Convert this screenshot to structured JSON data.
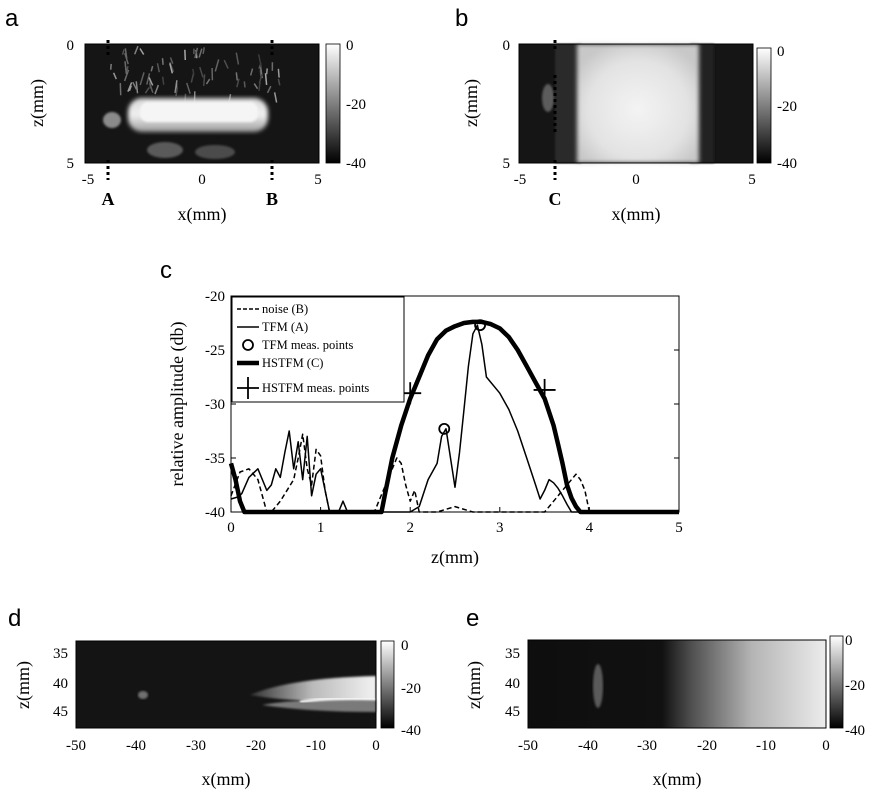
{
  "chart_data": [
    {
      "panel": "a",
      "type": "heatmap",
      "xlabel": "x(mm)",
      "ylabel": "z(mm)",
      "xticks": [
        "-5",
        "0",
        "5"
      ],
      "yticks": [
        "0",
        "5"
      ],
      "xlim": [
        -5,
        5
      ],
      "ylim": [
        0,
        5
      ],
      "colorbar": {
        "ticks": [
          "0",
          "-20",
          "-40"
        ],
        "range": [
          -40,
          0
        ]
      },
      "markers": [
        {
          "label": "A",
          "x": -4.2
        },
        {
          "label": "B",
          "x": 3.6
        }
      ]
    },
    {
      "panel": "b",
      "type": "heatmap",
      "xlabel": "x(mm)",
      "ylabel": "z(mm)",
      "xticks": [
        "-5",
        "0",
        "5"
      ],
      "yticks": [
        "0",
        "5"
      ],
      "xlim": [
        -5,
        5
      ],
      "ylim": [
        0,
        5
      ],
      "colorbar": {
        "ticks": [
          "0",
          "-20",
          "-40"
        ],
        "range": [
          -40,
          0
        ]
      },
      "markers": [
        {
          "label": "C",
          "x": -4.2
        }
      ]
    },
    {
      "panel": "c",
      "type": "line",
      "xlabel": "z(mm)",
      "ylabel": "relative amplitude (db)",
      "xlim": [
        0,
        5
      ],
      "ylim": [
        -40,
        -20
      ],
      "xticks": [
        "0",
        "1",
        "2",
        "3",
        "4",
        "5"
      ],
      "yticks": [
        "-20",
        "-25",
        "-30",
        "-35",
        "-40"
      ],
      "legend_position": "top-left",
      "series": [
        {
          "name": "noise (B)",
          "style": "dashed",
          "x": [
            0,
            0.1,
            0.2,
            0.3,
            0.4,
            0.45,
            0.55,
            0.7,
            0.75,
            0.8,
            0.85,
            0.9,
            0.95,
            1.0,
            1.05,
            1.1,
            1.2,
            1.6,
            1.65,
            1.75,
            1.85,
            1.9,
            1.95,
            2.0,
            2.05,
            2.1,
            2.3,
            2.5,
            2.7,
            3.5,
            3.6,
            3.7,
            3.8,
            3.85,
            3.9,
            3.95,
            4.0,
            4.05,
            4.1,
            5.0
          ],
          "y": [
            -38.5,
            -36.3,
            -36.0,
            -37.0,
            -40,
            -40,
            -39,
            -37,
            -35,
            -32.8,
            -36,
            -37.5,
            -34.2,
            -34.8,
            -38,
            -40,
            -40,
            -40,
            -39,
            -37,
            -35,
            -35.5,
            -37.5,
            -39,
            -38,
            -40,
            -40,
            -39.5,
            -40,
            -40,
            -39,
            -38,
            -37,
            -36.5,
            -37,
            -38,
            -40,
            -40,
            -40,
            -40
          ]
        },
        {
          "name": "TFM (A)",
          "style": "solid",
          "x": [
            0,
            0.08,
            0.12,
            0.2,
            0.3,
            0.4,
            0.45,
            0.5,
            0.55,
            0.6,
            0.65,
            0.7,
            0.75,
            0.8,
            0.85,
            0.9,
            0.95,
            1.0,
            1.05,
            1.1,
            1.2,
            1.25,
            1.3,
            1.6,
            1.8,
            1.9,
            2.0,
            2.1,
            2.2,
            2.3,
            2.35,
            2.4,
            2.45,
            2.5,
            2.55,
            2.6,
            2.65,
            2.7,
            2.75,
            2.8,
            2.85,
            3.0,
            3.1,
            3.2,
            3.3,
            3.4,
            3.45,
            3.5,
            3.55,
            3.6,
            3.65,
            3.7,
            3.75,
            3.8,
            3.9,
            5.0
          ],
          "y": [
            -38.8,
            -38.6,
            -38.3,
            -36.8,
            -36.0,
            -38.0,
            -37.5,
            -36.0,
            -36.8,
            -34.5,
            -32.5,
            -36.0,
            -33.5,
            -37.0,
            -33.0,
            -38.5,
            -36.5,
            -36.0,
            -38.0,
            -40,
            -40,
            -39,
            -40,
            -40,
            -40,
            -40,
            -40,
            -39.5,
            -37,
            -35.5,
            -33.0,
            -32.3,
            -35.0,
            -37.7,
            -34.5,
            -30.5,
            -26.5,
            -23.5,
            -22.7,
            -24.5,
            -27.5,
            -29.0,
            -30.5,
            -32.5,
            -35.0,
            -37.5,
            -38.8,
            -38.0,
            -37.0,
            -37.3,
            -37.8,
            -38.5,
            -39.3,
            -40,
            -40,
            -40
          ]
        },
        {
          "name": "HSTFM (C)",
          "style": "thick",
          "x": [
            0,
            0.05,
            0.1,
            0.15,
            0.2,
            1.68,
            1.72,
            1.8,
            1.9,
            2.0,
            2.1,
            2.2,
            2.3,
            2.4,
            2.5,
            2.6,
            2.7,
            2.8,
            2.9,
            3.0,
            3.1,
            3.2,
            3.3,
            3.4,
            3.5,
            3.6,
            3.65,
            3.7,
            3.75,
            3.8,
            3.85,
            3.9,
            5.0
          ],
          "y": [
            -35.5,
            -37,
            -39,
            -40,
            -40,
            -40,
            -38.3,
            -35.0,
            -32.0,
            -29.5,
            -27.5,
            -25.5,
            -24.0,
            -23.2,
            -22.8,
            -22.5,
            -22.4,
            -22.4,
            -22.6,
            -23.0,
            -23.8,
            -25.0,
            -26.5,
            -28.0,
            -29.5,
            -32.0,
            -33.7,
            -35.5,
            -37.5,
            -38.7,
            -39.5,
            -40,
            -40
          ]
        },
        {
          "name": "TFM meas. points",
          "style": "circle-markers",
          "x": [
            2.38,
            2.78
          ],
          "y": [
            -32.3,
            -22.7
          ]
        },
        {
          "name": "HSTFM meas. points",
          "style": "plus-markers",
          "x": [
            2.0,
            3.5
          ],
          "y": [
            -29.0,
            -28.7
          ]
        }
      ]
    },
    {
      "panel": "d",
      "type": "heatmap",
      "xlabel": "x(mm)",
      "ylabel": "z(mm)",
      "xticks": [
        "-50",
        "-40",
        "-30",
        "-20",
        "-10",
        "0"
      ],
      "yticks": [
        "35",
        "40",
        "45"
      ],
      "xlim": [
        -50,
        0
      ],
      "ylim": [
        32,
        48
      ],
      "colorbar": {
        "ticks": [
          "0",
          "-20",
          "-40"
        ],
        "range": [
          -40,
          0
        ]
      }
    },
    {
      "panel": "e",
      "type": "heatmap",
      "xlabel": "x(mm)",
      "ylabel": "z(mm)",
      "xticks": [
        "-50",
        "-40",
        "-30",
        "-20",
        "-10",
        "0"
      ],
      "yticks": [
        "35",
        "40",
        "45"
      ],
      "xlim": [
        -50,
        0
      ],
      "ylim": [
        32,
        48
      ],
      "colorbar": {
        "ticks": [
          "0",
          "-20",
          "-40"
        ],
        "range": [
          -40,
          0
        ]
      }
    }
  ]
}
